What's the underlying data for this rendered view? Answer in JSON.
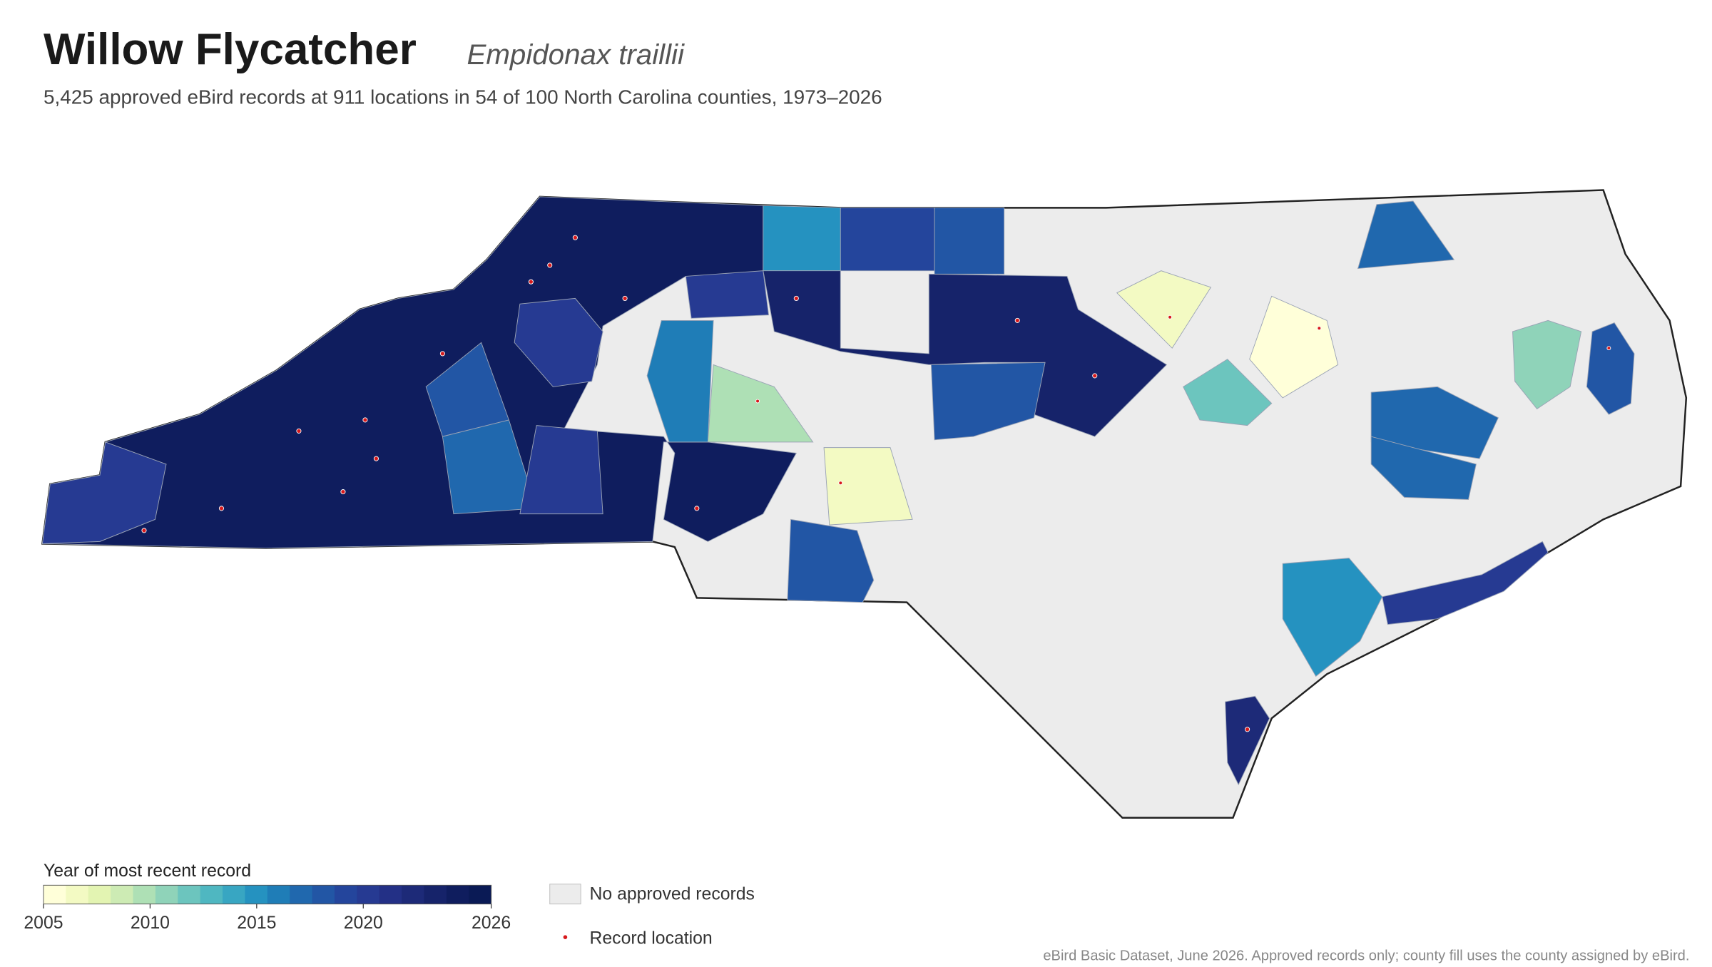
{
  "header": {
    "title": "Willow Flycatcher",
    "species": "Empidonax traillii",
    "subtitle": "5,425 approved eBird records at 911 locations in 54 of 100 North Carolina counties, 1973–2026"
  },
  "legend": {
    "title": "Year of most recent record",
    "range": [
      2005,
      2026
    ],
    "ticks": [
      2005,
      2010,
      2015,
      2020,
      2026
    ],
    "colors": [
      "#ffffd9",
      "#f3fac3",
      "#e3f4b2",
      "#cdebb4",
      "#aee0b5",
      "#8fd3b9",
      "#6cc5be",
      "#4fb7c1",
      "#38a6c2",
      "#2592c0",
      "#1f7db7",
      "#2068ae",
      "#2256a5",
      "#24459c",
      "#263a92",
      "#233086",
      "#1d2a78",
      "#16236a",
      "#0f1d5e",
      "#0a1a55"
    ],
    "no_data_label": "No approved records",
    "no_data_color": "#ececec",
    "point_label": "Record location",
    "point_color": "#d7191c"
  },
  "footer": {
    "source": "eBird Basic Dataset, June 2026. Approved records only; county fill uses the county assigned by eBird."
  }
}
